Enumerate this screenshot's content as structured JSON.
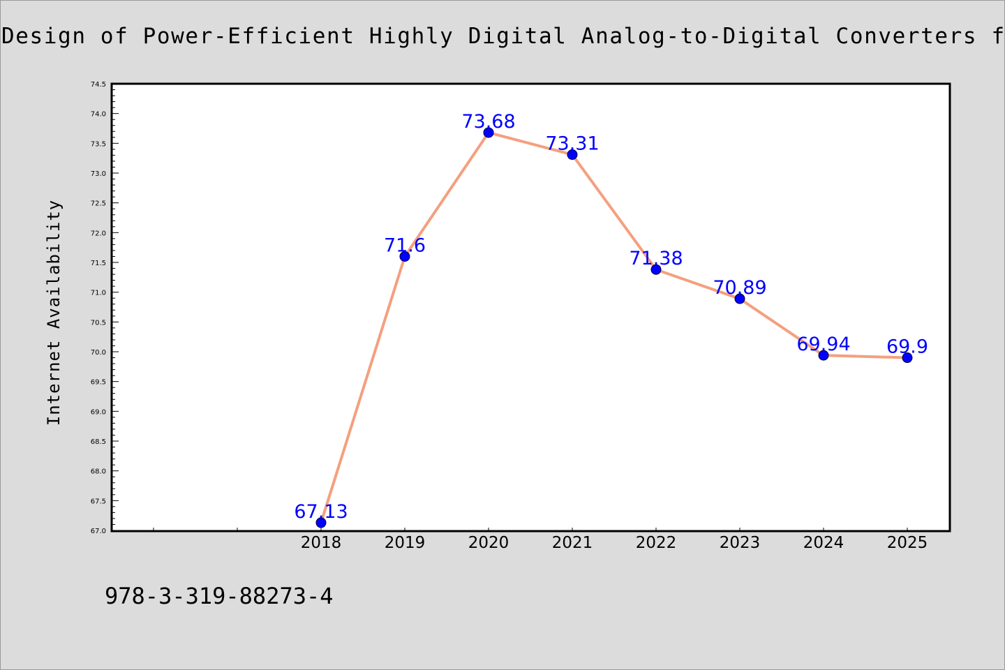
{
  "page": {
    "title": "Design of Power-Efficient Highly Digital Analog-to-Digital Converters for Next-G",
    "isbn": "978-3-319-88273-4"
  },
  "chart_data": {
    "type": "line",
    "title": "Design of Power-Efficient Highly Digital Analog-to-Digital Converters for Next-G",
    "xlabel": "",
    "ylabel": "Internet Availability",
    "categories": [
      "2018",
      "2019",
      "2020",
      "2021",
      "2022",
      "2023",
      "2024",
      "2025"
    ],
    "series": [
      {
        "values": [
          67.13,
          71.6,
          73.68,
          73.31,
          71.38,
          70.89,
          69.94,
          69.9
        ],
        "data_labels": [
          "67.13",
          "71.6",
          "73.68",
          "73.31",
          "71.38",
          "70.89",
          "69.94",
          "69.9"
        ],
        "line_color": "#f4a07f",
        "marker_color": "#0000ff"
      }
    ],
    "ylim": [
      67.0,
      74.5
    ],
    "y_ticks": [
      "67.0",
      "67.5",
      "68.0",
      "68.5",
      "69.0",
      "69.5",
      "70.0",
      "70.5",
      "71.0",
      "71.5",
      "72.0",
      "72.5",
      "73.0",
      "73.5",
      "74.0",
      "74.5"
    ],
    "grid": false,
    "legend": "none",
    "colors": {
      "background": "#dcdcdc",
      "plot_background": "#ffffff",
      "label_color": "#0000ff"
    }
  }
}
